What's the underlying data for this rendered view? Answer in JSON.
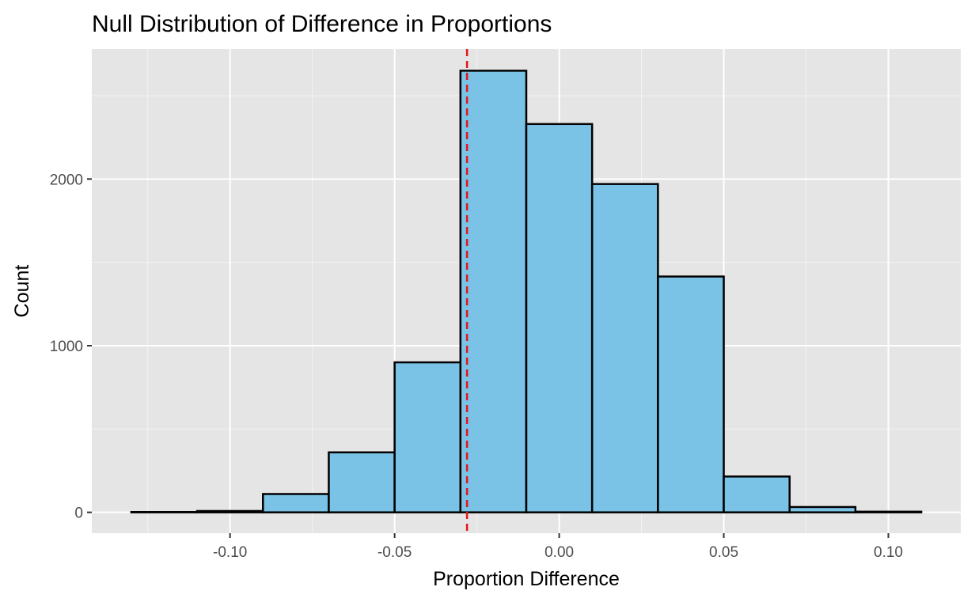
{
  "chart_data": {
    "type": "bar",
    "title": "Null Distribution of Difference in Proportions",
    "xlabel": "Proportion Difference",
    "ylabel": "Count",
    "xlim": [
      -0.142,
      0.122
    ],
    "ylim": [
      -125,
      2780
    ],
    "x_ticks": [
      -0.1,
      -0.05,
      0.0,
      0.05,
      0.1
    ],
    "x_tick_labels": [
      "-0.10",
      "-0.05",
      "0.00",
      "0.05",
      "0.10"
    ],
    "y_ticks": [
      0,
      1000,
      2000
    ],
    "y_tick_labels": [
      "0",
      "1000",
      "2000"
    ],
    "bins": [
      {
        "x0": -0.13,
        "x1": -0.11,
        "count": 2
      },
      {
        "x0": -0.11,
        "x1": -0.09,
        "count": 8
      },
      {
        "x0": -0.09,
        "x1": -0.07,
        "count": 110
      },
      {
        "x0": -0.07,
        "x1": -0.05,
        "count": 360
      },
      {
        "x0": -0.05,
        "x1": -0.03,
        "count": 900
      },
      {
        "x0": -0.03,
        "x1": -0.01,
        "count": 2650
      },
      {
        "x0": -0.01,
        "x1": 0.01,
        "count": 2330
      },
      {
        "x0": 0.01,
        "x1": 0.03,
        "count": 1970
      },
      {
        "x0": 0.03,
        "x1": 0.05,
        "count": 1415
      },
      {
        "x0": 0.05,
        "x1": 0.07,
        "count": 215
      },
      {
        "x0": 0.07,
        "x1": 0.09,
        "count": 32
      },
      {
        "x0": 0.09,
        "x1": 0.11,
        "count": 4
      }
    ],
    "observed_line": {
      "x": -0.028,
      "color": "#e8141a",
      "style": "dashed"
    },
    "fill_color": "#7ac3e6",
    "edge_color": "#000000",
    "panel_background": "#e5e5e5",
    "grid": true
  }
}
